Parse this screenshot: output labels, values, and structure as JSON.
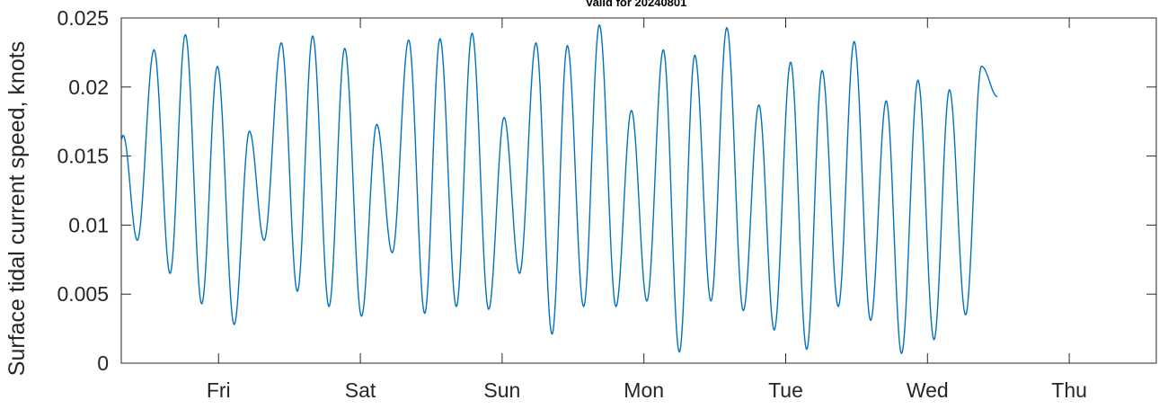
{
  "chart_data": {
    "type": "line",
    "title": "Valid for 20240801",
    "xlabel": "",
    "ylabel": "Surface tidal current speed, knots",
    "xlim": [
      0,
      7.3
    ],
    "ylim": [
      0,
      0.025
    ],
    "y_ticks": [
      "0",
      "0.005",
      "0.01",
      "0.015",
      "0.02",
      "0.025"
    ],
    "x_ticks": [
      {
        "label": "Fri",
        "x": 0.686
      },
      {
        "label": "Sat",
        "x": 1.686
      },
      {
        "label": "Sun",
        "x": 2.686
      },
      {
        "label": "Mon",
        "x": 3.686
      },
      {
        "label": "Tue",
        "x": 4.686
      },
      {
        "label": "Wed",
        "x": 5.686
      },
      {
        "label": "Thu",
        "x": 6.686
      }
    ],
    "grid": false,
    "line_color": "#0072BD",
    "series": [
      {
        "extrema": [
          [
            0.0,
            0.0162
          ],
          [
            0.013,
            0.0165
          ],
          [
            0.113,
            0.0089
          ],
          [
            0.231,
            0.0227
          ],
          [
            0.344,
            0.0065
          ],
          [
            0.452,
            0.0238
          ],
          [
            0.567,
            0.0043
          ],
          [
            0.678,
            0.0215
          ],
          [
            0.796,
            0.0028
          ],
          [
            0.904,
            0.0168
          ],
          [
            1.007,
            0.0089
          ],
          [
            1.129,
            0.0232
          ],
          [
            1.242,
            0.0052
          ],
          [
            1.35,
            0.0237
          ],
          [
            1.465,
            0.0041
          ],
          [
            1.576,
            0.0228
          ],
          [
            1.694,
            0.0034
          ],
          [
            1.802,
            0.0173
          ],
          [
            1.911,
            0.008
          ],
          [
            2.027,
            0.0234
          ],
          [
            2.14,
            0.0036
          ],
          [
            2.248,
            0.0235
          ],
          [
            2.363,
            0.0041
          ],
          [
            2.474,
            0.0239
          ],
          [
            2.591,
            0.0039
          ],
          [
            2.7,
            0.0178
          ],
          [
            2.809,
            0.0065
          ],
          [
            2.925,
            0.0232
          ],
          [
            3.038,
            0.0021
          ],
          [
            3.146,
            0.023
          ],
          [
            3.261,
            0.0041
          ],
          [
            3.372,
            0.0245
          ],
          [
            3.489,
            0.0041
          ],
          [
            3.598,
            0.0183
          ],
          [
            3.707,
            0.0045
          ],
          [
            3.823,
            0.0227
          ],
          [
            3.936,
            0.0008
          ],
          [
            4.045,
            0.0223
          ],
          [
            4.159,
            0.0045
          ],
          [
            4.271,
            0.0243
          ],
          [
            4.387,
            0.0038
          ],
          [
            4.497,
            0.0187
          ],
          [
            4.605,
            0.0024
          ],
          [
            4.721,
            0.0218
          ],
          [
            4.834,
            0.001
          ],
          [
            4.943,
            0.0212
          ],
          [
            5.057,
            0.0041
          ],
          [
            5.169,
            0.0233
          ],
          [
            5.285,
            0.0031
          ],
          [
            5.395,
            0.019
          ],
          [
            5.503,
            0.0007
          ],
          [
            5.619,
            0.0205
          ],
          [
            5.732,
            0.0017
          ],
          [
            5.841,
            0.0198
          ],
          [
            5.955,
            0.0035
          ],
          [
            6.067,
            0.0215
          ],
          [
            6.18,
            0.0193
          ]
        ]
      }
    ]
  }
}
